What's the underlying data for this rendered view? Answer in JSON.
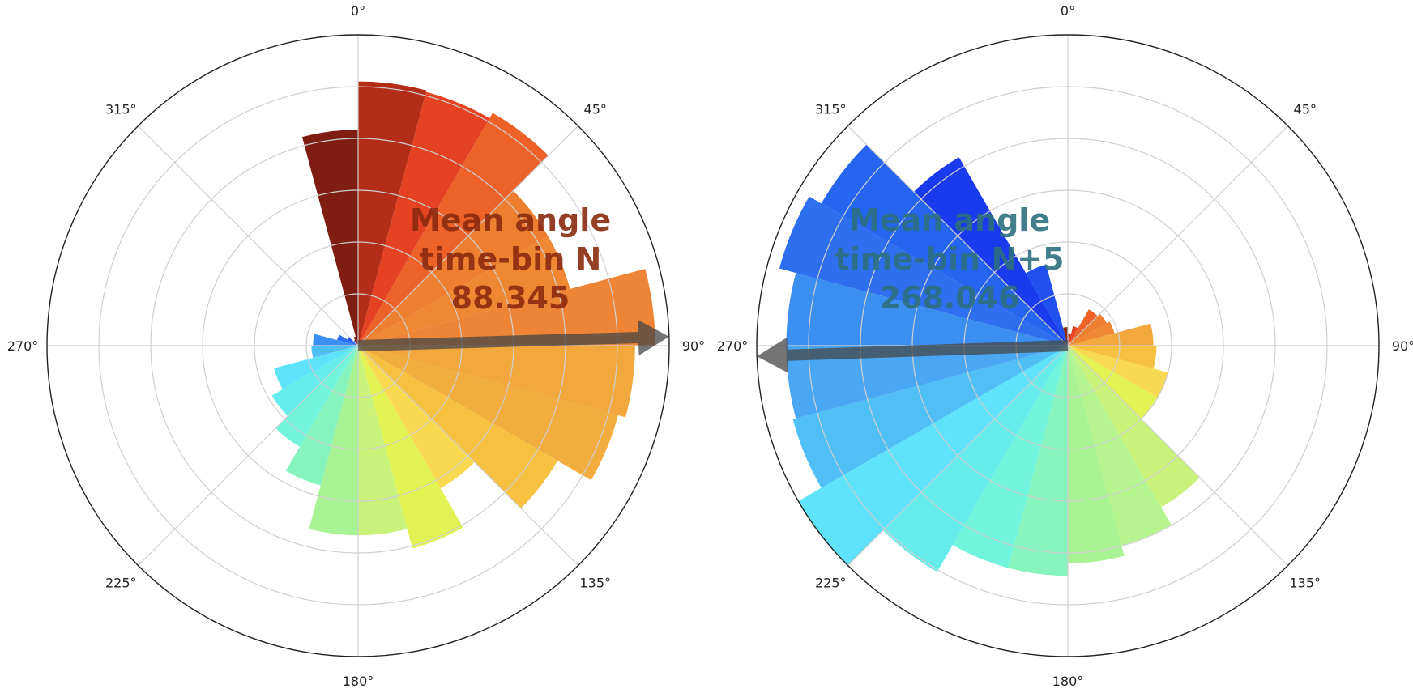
{
  "chart_data": [
    {
      "type": "polar-bar",
      "theta_direction": "clockwise",
      "theta_zero_location": "top",
      "theta_tick_labels": [
        "0°",
        "45°",
        "90°",
        "135°",
        "180°",
        "225°",
        "270°",
        "315°"
      ],
      "radial_grid_count": 6,
      "bin_width_deg": 15,
      "bars": [
        {
          "angle": 352.5,
          "r": 1.39,
          "color": "#7f1d12"
        },
        {
          "angle": 7.5,
          "r": 1.7,
          "color": "#b32d18"
        },
        {
          "angle": 22.5,
          "r": 1.69,
          "color": "#e54224"
        },
        {
          "angle": 37.5,
          "r": 1.73,
          "color": "#ec6228"
        },
        {
          "angle": 52.5,
          "r": 1.41,
          "color": "#ee7f30"
        },
        {
          "angle": 67.5,
          "r": 1.41,
          "color": "#ef8733"
        },
        {
          "angle": 82.5,
          "r": 1.91,
          "color": "#ee8435"
        },
        {
          "angle": 97.5,
          "r": 1.78,
          "color": "#f2a83d"
        },
        {
          "angle": 112.5,
          "r": 1.73,
          "color": "#f1ad3e"
        },
        {
          "angle": 127.5,
          "r": 1.48,
          "color": "#f6c141"
        },
        {
          "angle": 142.5,
          "r": 1.06,
          "color": "#fad952"
        },
        {
          "angle": 157.5,
          "r": 1.35,
          "color": "#e2f253"
        },
        {
          "angle": 172.5,
          "r": 1.22,
          "color": "#c9f27a"
        },
        {
          "angle": 187.5,
          "r": 1.22,
          "color": "#a8f495"
        },
        {
          "angle": 202.5,
          "r": 0.93,
          "color": "#86f4bc"
        },
        {
          "angle": 217.5,
          "r": 0.75,
          "color": "#72f3db"
        },
        {
          "angle": 232.5,
          "r": 0.64,
          "color": "#66edeb"
        },
        {
          "angle": 247.5,
          "r": 0.56,
          "color": "#5fe3fb"
        },
        {
          "angle": 262.5,
          "r": 0.3,
          "color": "#4fbff6"
        },
        {
          "angle": 277.5,
          "r": 0.29,
          "color": "#3b8ff0"
        },
        {
          "angle": 292.5,
          "r": 0.14,
          "color": "#2d6fee"
        },
        {
          "angle": 307.5,
          "r": 0.08,
          "color": "#2050f0"
        },
        {
          "angle": 322.5,
          "r": 0.04,
          "color": "#1a3aee"
        },
        {
          "angle": 337.5,
          "r": 0.06,
          "color": "#7f1d12"
        }
      ],
      "mean_angle": 88.345,
      "mean_arrow_length": 2.0,
      "annotation_lines": [
        "Mean angle",
        "time-bin N",
        "88.345"
      ],
      "annotation_color": "#8b2a10"
    },
    {
      "type": "polar-bar",
      "theta_direction": "clockwise",
      "theta_zero_location": "top",
      "theta_tick_labels": [
        "0°",
        "45°",
        "90°",
        "135°",
        "180°",
        "225°",
        "270°",
        "315°"
      ],
      "radial_grid_count": 6,
      "bin_width_deg": 15,
      "bars": [
        {
          "angle": 352.5,
          "r": 0.12,
          "color": "#8b2a10"
        },
        {
          "angle": 7.5,
          "r": 0.08,
          "color": "#b32d18"
        },
        {
          "angle": 22.5,
          "r": 0.13,
          "color": "#e54224"
        },
        {
          "angle": 37.5,
          "r": 0.27,
          "color": "#ec6228"
        },
        {
          "angle": 52.5,
          "r": 0.29,
          "color": "#ee7f30"
        },
        {
          "angle": 67.5,
          "r": 0.31,
          "color": "#ef8733"
        },
        {
          "angle": 82.5,
          "r": 0.55,
          "color": "#f2a83d"
        },
        {
          "angle": 97.5,
          "r": 0.57,
          "color": "#f6c141"
        },
        {
          "angle": 112.5,
          "r": 0.67,
          "color": "#fad952"
        },
        {
          "angle": 127.5,
          "r": 0.67,
          "color": "#e2f253"
        },
        {
          "angle": 142.5,
          "r": 1.2,
          "color": "#c9f27a"
        },
        {
          "angle": 157.5,
          "r": 1.33,
          "color": "#b5f48e"
        },
        {
          "angle": 172.5,
          "r": 1.4,
          "color": "#a8f495"
        },
        {
          "angle": 187.5,
          "r": 1.48,
          "color": "#86f4bc"
        },
        {
          "angle": 202.5,
          "r": 1.48,
          "color": "#72f3db"
        },
        {
          "angle": 217.5,
          "r": 1.68,
          "color": "#66edeb"
        },
        {
          "angle": 232.5,
          "r": 2.0,
          "color": "#5fe3fb"
        },
        {
          "angle": 247.5,
          "r": 1.83,
          "color": "#4fbff6"
        },
        {
          "angle": 262.5,
          "r": 1.81,
          "color": "#4aa7f4"
        },
        {
          "angle": 277.5,
          "r": 1.81,
          "color": "#3b8ff0"
        },
        {
          "angle": 292.5,
          "r": 1.92,
          "color": "#2d6fee"
        },
        {
          "angle": 307.5,
          "r": 1.83,
          "color": "#2565f0"
        },
        {
          "angle": 322.5,
          "r": 1.4,
          "color": "#1a3aee"
        },
        {
          "angle": 337.5,
          "r": 0.54,
          "color": "#2050f0"
        }
      ],
      "mean_angle": 268.046,
      "mean_arrow_length": 2.0,
      "annotation_lines": [
        "Mean angle",
        "time-bin N+5",
        "268.046"
      ],
      "annotation_color": "#2e6f80"
    }
  ]
}
